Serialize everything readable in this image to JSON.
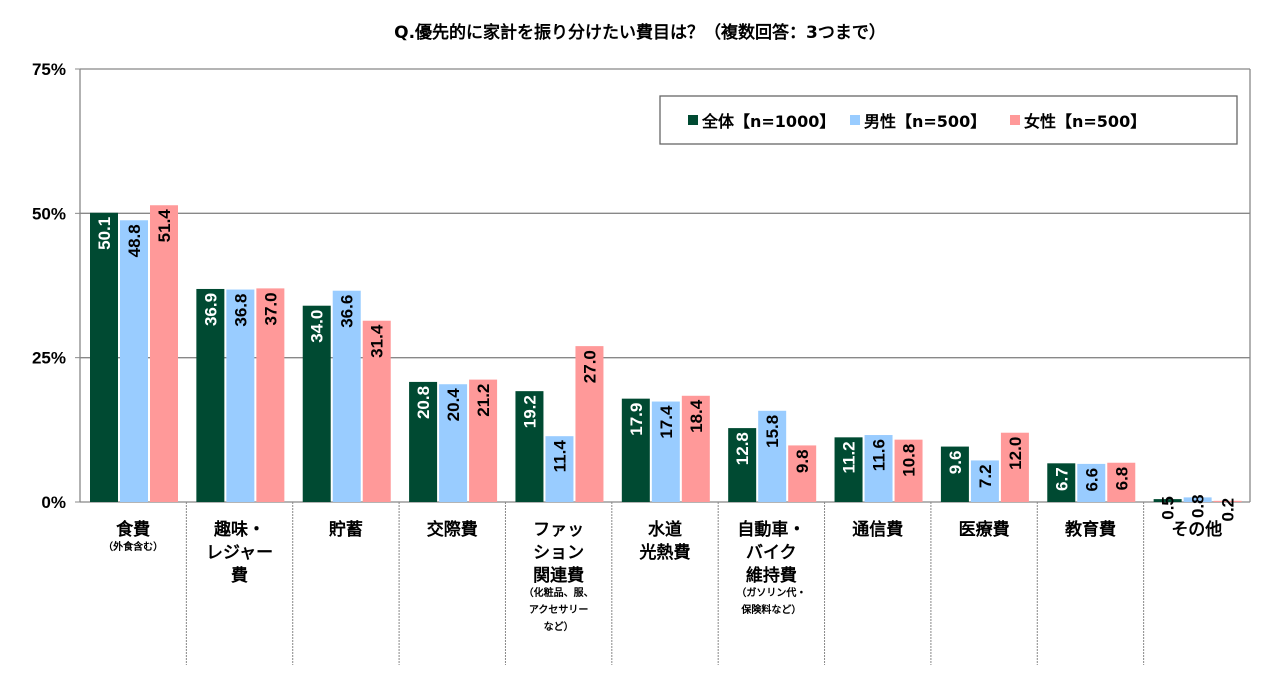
{
  "chart_data": {
    "type": "bar",
    "title": "Q.優先的に家計を振り分けたい費目は？（複数回答：3つまで）",
    "ylim": [
      0,
      75
    ],
    "yticks": [
      "0%",
      "25%",
      "50%",
      "75%"
    ],
    "ytick_values": [
      0,
      25,
      50,
      75
    ],
    "grid": true,
    "legend_position": "top-right",
    "categories": [
      {
        "label": [
          "食費"
        ],
        "note": [
          "（外食含む）"
        ]
      },
      {
        "label": [
          "趣味・",
          "レジャー",
          "費"
        ],
        "note": []
      },
      {
        "label": [
          "貯蓄"
        ],
        "note": []
      },
      {
        "label": [
          "交際費"
        ],
        "note": []
      },
      {
        "label": [
          "ファッ",
          "ション",
          "関連費"
        ],
        "note": [
          "（化粧品、服、",
          "アクセサリー",
          "など）"
        ]
      },
      {
        "label": [
          "水道",
          "光熱費"
        ],
        "note": []
      },
      {
        "label": [
          "自動車・",
          "バイク",
          "維持費"
        ],
        "note": [
          "（ガソリン代・",
          "保険料など）"
        ]
      },
      {
        "label": [
          "通信費"
        ],
        "note": []
      },
      {
        "label": [
          "医療費"
        ],
        "note": []
      },
      {
        "label": [
          "教育費"
        ],
        "note": []
      },
      {
        "label": [
          "その他"
        ],
        "note": []
      }
    ],
    "series": [
      {
        "name": "全体【n=1000】",
        "color": "#004a32",
        "label_color": "#ffffff",
        "values": [
          50.1,
          36.9,
          34.0,
          20.8,
          19.2,
          17.9,
          12.8,
          11.2,
          9.6,
          6.7,
          0.5
        ]
      },
      {
        "name": "男性【n=500】",
        "color": "#99ccff",
        "label_color": "#000000",
        "values": [
          48.8,
          36.8,
          36.6,
          20.4,
          11.4,
          17.4,
          15.8,
          11.6,
          7.2,
          6.6,
          0.8
        ]
      },
      {
        "name": "女性【n=500】",
        "color": "#ff9999",
        "label_color": "#000000",
        "values": [
          51.4,
          37.0,
          31.4,
          21.2,
          27.0,
          18.4,
          9.8,
          10.8,
          12.0,
          6.8,
          0.2
        ]
      }
    ]
  }
}
